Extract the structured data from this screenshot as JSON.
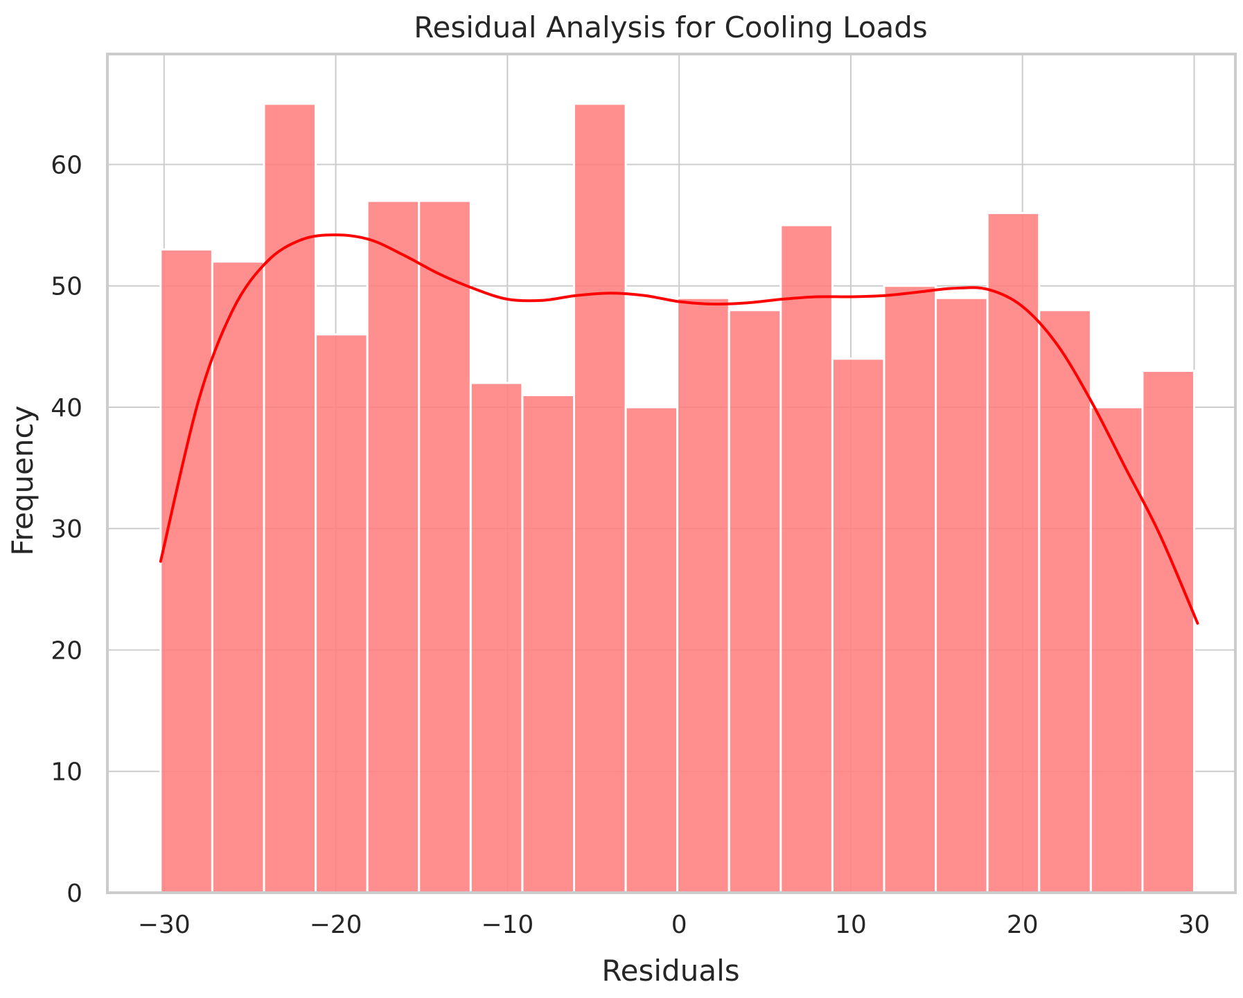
{
  "chart_data": {
    "type": "bar",
    "subtype": "histogram",
    "title": "Residual Analysis for Cooling Loads",
    "xlabel": "Residuals",
    "ylabel": "Frequency",
    "xlim": [
      -33.3,
      32.4
    ],
    "ylim": [
      0,
      69.1
    ],
    "x_ticks": [
      -30,
      -20,
      -10,
      0,
      10,
      20,
      30
    ],
    "x_tick_labels": [
      "−30",
      "−20",
      "−10",
      "0",
      "10",
      "20",
      "30"
    ],
    "y_ticks": [
      0,
      10,
      20,
      30,
      40,
      50,
      60
    ],
    "y_tick_labels": [
      "0",
      "10",
      "20",
      "30",
      "40",
      "50",
      "60"
    ],
    "grid": true,
    "bin_start": -30.2,
    "bin_width": 3.01,
    "values": [
      53,
      52,
      65,
      46,
      57,
      57,
      42,
      41,
      65,
      40,
      49,
      48,
      55,
      44,
      50,
      49,
      56,
      48,
      40,
      43
    ],
    "kde": {
      "x": [
        -30.2,
        -28.0,
        -26.0,
        -24.0,
        -22.0,
        -20.0,
        -18.0,
        -16.0,
        -14.0,
        -12.0,
        -10.0,
        -8.0,
        -6.0,
        -4.0,
        -2.0,
        0.0,
        2.0,
        4.0,
        6.0,
        8.0,
        10.0,
        12.0,
        14.0,
        16.0,
        18.0,
        20.0,
        22.0,
        24.0,
        26.0,
        28.0,
        30.2
      ],
      "y": [
        27.3,
        40.5,
        48.0,
        52.0,
        53.8,
        54.2,
        53.8,
        52.5,
        51.0,
        49.8,
        48.9,
        48.8,
        49.2,
        49.4,
        49.2,
        48.7,
        48.5,
        48.6,
        48.9,
        49.1,
        49.1,
        49.2,
        49.5,
        49.8,
        49.7,
        48.3,
        45.2,
        40.5,
        35.0,
        29.5,
        22.2
      ]
    },
    "colors": {
      "bar_fill": "#ff7f7f",
      "kde_line": "#ff0000",
      "grid": "#cccccc",
      "spine": "#cccccc",
      "text": "#262626"
    }
  }
}
